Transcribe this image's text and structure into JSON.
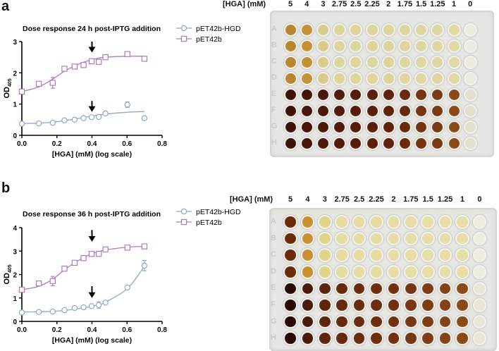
{
  "panels": [
    {
      "letter": "a"
    },
    {
      "letter": "b"
    }
  ],
  "chart_data": [
    {
      "type": "line",
      "title": "Dose response 24 h post-IPTG addition",
      "xlabel": "[HGA] (mM) (log scale)",
      "ylabel": "OD",
      "ylabel_sub": "405",
      "xlim": [
        0,
        0.8
      ],
      "ylim": [
        0,
        3
      ],
      "xticks": [
        "0.0",
        "0.2",
        "0.4",
        "0.6",
        "0.8"
      ],
      "yticks": [
        "0",
        "1",
        "2",
        "3"
      ],
      "legend_position": "right",
      "x": [
        0,
        0.097,
        0.176,
        0.243,
        0.301,
        0.352,
        0.398,
        0.439,
        0.477,
        0.602,
        0.699
      ],
      "series": [
        {
          "name": "pET42b-HGD",
          "marker": "circle",
          "color": "#8fa8c8",
          "values": [
            0.37,
            0.38,
            0.4,
            0.48,
            0.5,
            0.55,
            0.58,
            0.59,
            0.7,
            0.98,
            0.55
          ],
          "err": [
            0,
            0,
            0,
            0,
            0,
            0,
            0,
            0,
            0,
            0.09,
            0.04
          ],
          "fit": [
            0.38,
            0.39,
            0.42,
            0.47,
            0.52,
            0.57,
            0.61,
            0.65,
            0.68,
            0.74,
            0.76
          ]
        },
        {
          "name": "pET42b",
          "marker": "square",
          "color": "#b07ac0",
          "values": [
            1.4,
            1.65,
            1.68,
            2.13,
            2.2,
            2.25,
            2.37,
            2.35,
            2.5,
            2.6,
            2.45
          ],
          "err": [
            0,
            0,
            0.17,
            0,
            0,
            0.06,
            0,
            0,
            0,
            0,
            0
          ],
          "fit": [
            1.4,
            1.55,
            1.8,
            2.05,
            2.22,
            2.34,
            2.42,
            2.47,
            2.5,
            2.53,
            2.53
          ]
        }
      ],
      "annotations": [
        {
          "type": "arrow",
          "x": 0.4,
          "y_from": 3.0,
          "y_to": 2.65
        },
        {
          "type": "arrow",
          "x": 0.4,
          "y_from": 1.1,
          "y_to": 0.75
        }
      ]
    },
    {
      "type": "line",
      "title": "Dose response 36 h post-IPTG addition",
      "xlabel": "[HGA] (mM) (log scale)",
      "ylabel": "OD",
      "ylabel_sub": "405",
      "xlim": [
        0,
        0.8
      ],
      "ylim": [
        0,
        4
      ],
      "xticks": [
        "0.0",
        "0.2",
        "0.4",
        "0.6",
        "0.8"
      ],
      "yticks": [
        "0",
        "1",
        "2",
        "3",
        "4"
      ],
      "legend_position": "right",
      "x": [
        0,
        0.097,
        0.176,
        0.243,
        0.301,
        0.352,
        0.398,
        0.439,
        0.477,
        0.602,
        0.699
      ],
      "series": [
        {
          "name": "pET42b-HGD",
          "marker": "circle",
          "color": "#8fa8c8",
          "values": [
            0.38,
            0.4,
            0.42,
            0.48,
            0.57,
            0.6,
            0.65,
            0.7,
            0.8,
            1.45,
            2.38
          ],
          "err": [
            0,
            0,
            0,
            0,
            0,
            0,
            0,
            0.14,
            0,
            0.06,
            0.22
          ],
          "fit": [
            0.4,
            0.41,
            0.43,
            0.47,
            0.52,
            0.58,
            0.64,
            0.72,
            0.82,
            1.4,
            2.35
          ]
        },
        {
          "name": "pET42b",
          "marker": "square",
          "color": "#b07ac0",
          "values": [
            1.35,
            1.62,
            1.72,
            2.25,
            2.5,
            2.7,
            2.88,
            2.88,
            3.07,
            3.15,
            3.2
          ],
          "err": [
            0,
            0,
            0.2,
            0,
            0,
            0,
            0,
            0,
            0,
            0,
            0
          ],
          "fit": [
            1.35,
            1.5,
            1.8,
            2.2,
            2.5,
            2.72,
            2.88,
            2.98,
            3.05,
            3.17,
            3.2
          ]
        }
      ],
      "annotations": [
        {
          "type": "arrow",
          "x": 0.4,
          "y_from": 3.9,
          "y_to": 3.4
        },
        {
          "type": "arrow",
          "x": 0.4,
          "y_from": 1.5,
          "y_to": 1.0
        }
      ]
    }
  ],
  "plates": [
    {
      "header_label": "[HGA] (mM)",
      "columns": [
        "5",
        "4",
        "3",
        "2.75",
        "2.5",
        "2.25",
        "2",
        "1.75",
        "1.5",
        "1.25",
        "1",
        "0"
      ],
      "rows": [
        "A",
        "B",
        "C",
        "D",
        "E",
        "F",
        "G",
        "H"
      ],
      "upper_colors": [
        "#b8862e",
        "#c39236",
        "#d8cd88",
        "#dcd69c",
        "#dcd69c",
        "#dcd69c",
        "#dcd49a",
        "#ddd69e",
        "#ddd8a2",
        "#ddd8a2",
        "#dfd9a4",
        "#ecebe0"
      ],
      "lower_colors": [
        "#3d1208",
        "#45150a",
        "#4b180a",
        "#521b0b",
        "#561c0a",
        "#5a1f0b",
        "#5e220c",
        "#662a0e",
        "#743510",
        "#7a3a12",
        "#8a4a18",
        "#e3e0cf"
      ]
    },
    {
      "header_label": "[HGA] (mM)",
      "columns": [
        "5",
        "4",
        "3",
        "2.75",
        "2.5",
        "2.25",
        "2",
        "1.75",
        "1.5",
        "1.25",
        "1",
        "0"
      ],
      "rows": [
        "A",
        "B",
        "C",
        "D",
        "E",
        "F",
        "G",
        "H"
      ],
      "upper_colors": [
        "#6b2a0c",
        "#c8902e",
        "#e0d48a",
        "#e4dca0",
        "#e4dca0",
        "#e4dca0",
        "#e6dea4",
        "#e6dea4",
        "#e6dfa6",
        "#e6dfa6",
        "#e6dfa6",
        "#ecece0"
      ],
      "lower_colors": [
        "#2a0a06",
        "#4a1a0a",
        "#5e250c",
        "#66290d",
        "#6a2c0e",
        "#6e2e0e",
        "#723010",
        "#783612",
        "#7e3c14",
        "#844216",
        "#8a4a16",
        "#e8e6d8"
      ]
    }
  ]
}
